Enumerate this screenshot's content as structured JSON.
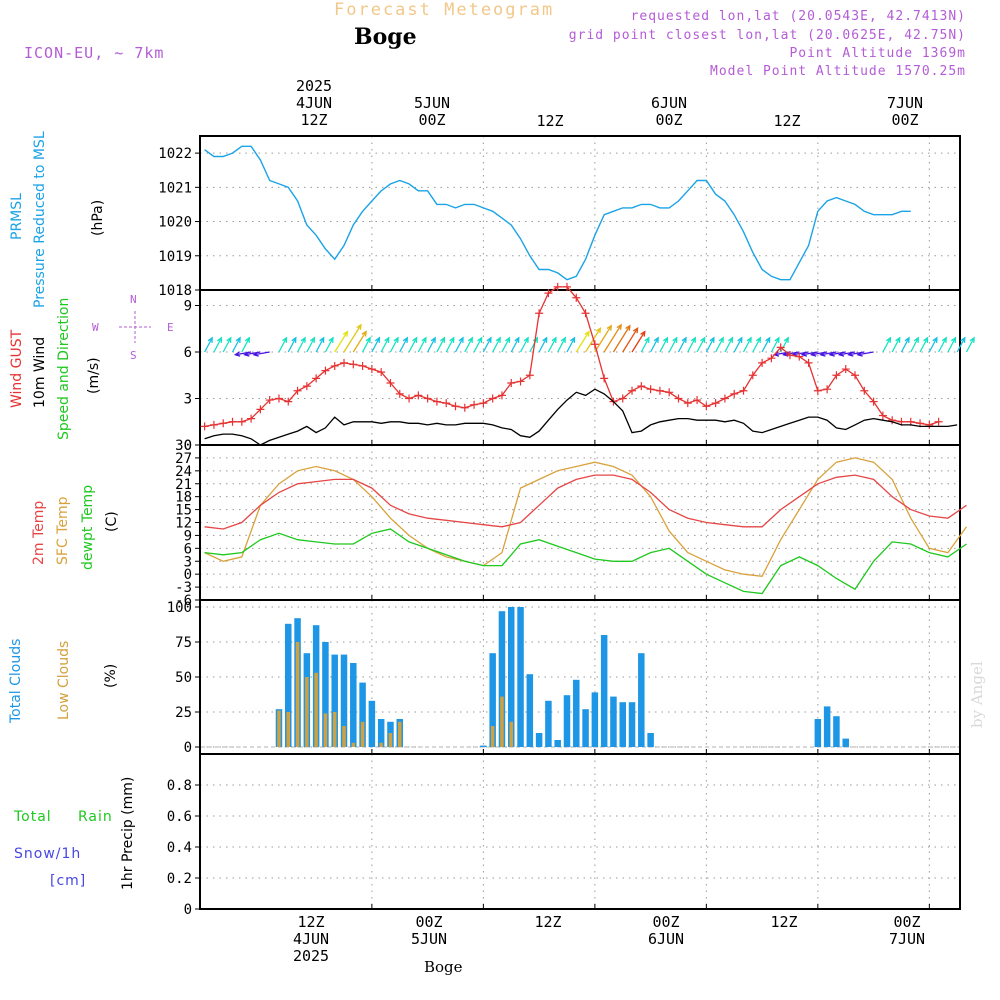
{
  "header": {
    "title": "Forecast Meteogram",
    "location": "Boge",
    "model": "ICON-EU, ~ 7km",
    "requested": "requested lon,lat (20.0543E, 42.7413N)",
    "grid_point": "grid point closest lon,lat (20.0625E, 42.75N)",
    "point_altitude": "Point Altitude 1369m",
    "model_altitude": "Model Point Altitude 1570.25m",
    "footer_location": "Boge",
    "watermark": "by Angel"
  },
  "time_axis": {
    "top_labels": [
      {
        "lines": [
          "2025",
          "4JUN",
          "12Z"
        ],
        "t": 12
      },
      {
        "lines": [
          "5JUN",
          "00Z"
        ],
        "t": 24
      },
      {
        "lines": [
          "12Z"
        ],
        "t": 36
      },
      {
        "lines": [
          "6JUN",
          "00Z"
        ],
        "t": 48
      },
      {
        "lines": [
          "12Z"
        ],
        "t": 60
      },
      {
        "lines": [
          "7JUN",
          "00Z"
        ],
        "t": 72
      }
    ],
    "bottom_labels": [
      {
        "lines": [
          "12Z",
          "4JUN",
          "2025"
        ],
        "t": 12
      },
      {
        "lines": [
          "00Z",
          "5JUN"
        ],
        "t": 24
      },
      {
        "lines": [
          "12Z"
        ],
        "t": 36
      },
      {
        "lines": [
          "00Z",
          "6JUN"
        ],
        "t": 48
      },
      {
        "lines": [
          "12Z"
        ],
        "t": 60
      },
      {
        "lines": [
          "00Z",
          "7JUN"
        ],
        "t": 72
      }
    ]
  },
  "colors": {
    "pressure": "#1aa3e6",
    "gust": "#e63232",
    "wind": "#000000",
    "temp2m": "#e64646",
    "sfc": "#d9a23c",
    "dewpt": "#1ec81e",
    "total_clouds": "#1e96e6",
    "low_clouds": "#d2a03c",
    "rain": "#1ec81e",
    "snow": "#4646e6",
    "annot": "#b45cd6"
  },
  "panel_labels": {
    "pressure": [
      "PRMSL",
      "Pressure Reduced to MSL",
      "(hPa)"
    ],
    "wind": [
      "Wind GUST",
      "10m Wind",
      "Speed and Direction",
      "(m/s)"
    ],
    "temp": [
      "2m Temp",
      "SFC Temp",
      "dewpt Temp",
      "(C)"
    ],
    "clouds": [
      "Total Clouds",
      "Low Clouds",
      "(%)"
    ],
    "precip": [
      "Total",
      "Rain",
      "Snow/1h",
      "[cm]",
      "1hr Precip (mm)"
    ],
    "compass": {
      "n": "N",
      "s": "S",
      "w": "W",
      "e": "E"
    }
  },
  "chart_data": [
    {
      "type": "line",
      "name": "pressure",
      "ylim": [
        1018,
        1022.5
      ],
      "yticks": [
        1018,
        1019,
        1020,
        1021,
        1022
      ],
      "t": [
        -6,
        -5,
        -4,
        -3,
        -2,
        -1,
        0,
        1,
        2,
        3,
        4,
        5,
        6,
        7,
        8,
        9,
        10,
        11,
        12,
        13,
        14,
        15,
        16,
        17,
        18,
        19,
        20,
        21,
        22,
        23,
        24,
        25,
        26,
        27,
        28,
        29,
        30,
        31,
        32,
        33,
        34,
        35,
        36,
        37,
        38,
        39,
        40,
        41,
        42,
        43,
        44,
        45,
        46,
        47,
        48,
        49,
        50,
        51,
        52,
        53,
        54,
        55,
        56,
        57,
        58,
        59,
        60,
        61,
        62,
        63,
        64,
        65,
        66,
        67,
        68,
        69,
        70,
        71,
        72,
        73,
        74,
        75,
        76
      ],
      "series": [
        {
          "values": [
            1022.1,
            1021.9,
            1021.9,
            1022.0,
            1022.2,
            1022.2,
            1021.8,
            1021.2,
            1021.1,
            1021.0,
            1020.6,
            1019.9,
            1019.6,
            1019.2,
            1018.9,
            1019.3,
            1019.9,
            1020.3,
            1020.6,
            1020.9,
            1021.1,
            1021.2,
            1021.1,
            1020.9,
            1020.9,
            1020.5,
            1020.5,
            1020.4,
            1020.5,
            1020.5,
            1020.4,
            1020.3,
            1020.1,
            1019.9,
            1019.5,
            1019.0,
            1018.6,
            1018.6,
            1018.5,
            1018.3,
            1018.4,
            1018.9,
            1019.6,
            1020.2,
            1020.3,
            1020.4,
            1020.4,
            1020.5,
            1020.5,
            1020.4,
            1020.4,
            1020.6,
            1020.9,
            1021.2,
            1021.2,
            1020.8,
            1020.6,
            1020.2,
            1019.7,
            1019.1,
            1018.6,
            1018.4,
            1018.3,
            1018.3,
            1018.8,
            1019.3,
            1020.3,
            1020.6,
            1020.7,
            1020.6,
            1020.5,
            1020.3,
            1020.2,
            1020.2,
            1020.2,
            1020.3,
            1020.3
          ]
        }
      ]
    },
    {
      "type": "line",
      "name": "wind",
      "ylim": [
        0,
        10
      ],
      "yticks": [
        0,
        3,
        6,
        9
      ],
      "t": [
        -6,
        -5,
        -4,
        -3,
        -2,
        -1,
        0,
        1,
        2,
        3,
        4,
        5,
        6,
        7,
        8,
        9,
        10,
        11,
        12,
        13,
        14,
        15,
        16,
        17,
        18,
        19,
        20,
        21,
        22,
        23,
        24,
        25,
        26,
        27,
        28,
        29,
        30,
        31,
        32,
        33,
        34,
        35,
        36,
        37,
        38,
        39,
        40,
        41,
        42,
        43,
        44,
        45,
        46,
        47,
        48,
        49,
        50,
        51,
        52,
        53,
        54,
        55,
        56,
        57,
        58,
        59,
        60,
        61,
        62,
        63,
        64,
        65,
        66,
        67,
        68,
        69,
        70,
        71,
        72,
        73,
        74,
        75,
        76
      ],
      "series": [
        {
          "values": [
            1.2,
            1.3,
            1.4,
            1.5,
            1.5,
            1.7,
            2.3,
            2.9,
            3.0,
            2.8,
            3.5,
            3.8,
            4.3,
            4.8,
            5.1,
            5.3,
            5.2,
            5.1,
            4.9,
            4.7,
            4.0,
            3.3,
            3.0,
            3.2,
            3.0,
            2.8,
            2.7,
            2.5,
            2.4,
            2.6,
            2.7,
            3.0,
            3.2,
            4.0,
            4.1,
            4.5,
            8.5,
            9.8,
            10.2,
            10.2,
            9.5,
            8.5,
            6.5,
            4.3,
            2.8,
            3.0,
            3.5,
            3.8,
            3.6,
            3.5,
            3.4,
            3.0,
            2.7,
            2.9,
            2.5,
            2.7,
            3.0,
            3.3,
            3.5,
            4.5,
            5.3,
            5.6,
            6.3,
            5.8,
            5.7,
            5.3,
            3.5,
            3.6,
            4.5,
            4.9,
            4.5,
            3.5,
            2.8,
            1.9,
            1.6,
            1.5,
            1.5,
            1.4,
            1.3,
            1.5
          ]
        },
        {
          "values": [
            0.4,
            0.6,
            0.7,
            0.7,
            0.6,
            0.4,
            0.0,
            0.3,
            0.5,
            0.7,
            0.9,
            1.2,
            0.8,
            1.1,
            1.8,
            1.3,
            1.5,
            1.5,
            1.5,
            1.4,
            1.5,
            1.5,
            1.4,
            1.4,
            1.3,
            1.4,
            1.3,
            1.3,
            1.4,
            1.4,
            1.4,
            1.3,
            1.1,
            1.0,
            0.6,
            0.5,
            0.9,
            1.6,
            2.3,
            2.9,
            3.4,
            3.2,
            3.6,
            3.3,
            2.8,
            2.2,
            0.8,
            0.9,
            1.3,
            1.5,
            1.6,
            1.7,
            1.7,
            1.6,
            1.6,
            1.6,
            1.5,
            1.6,
            1.4,
            0.9,
            0.8,
            1.0,
            1.2,
            1.4,
            1.6,
            1.8,
            1.8,
            1.6,
            1.1,
            1.0,
            1.3,
            1.6,
            1.7,
            1.6,
            1.5,
            1.3,
            1.3,
            1.2,
            1.2,
            1.2,
            1.2,
            1.3
          ]
        }
      ],
      "arrows": {
        "t_from": -6,
        "t_to": 76,
        "peak_ranges": [
          [
            8,
            10
          ],
          [
            34,
            40
          ]
        ],
        "calm_ranges": [
          [
            -1,
            1
          ],
          [
            57,
            66
          ]
        ]
      }
    },
    {
      "type": "line",
      "name": "temperature",
      "ylim": [
        -6,
        30
      ],
      "yticks": [
        -6,
        -3,
        0,
        3,
        6,
        9,
        12,
        15,
        18,
        21,
        24,
        27,
        30
      ],
      "t": [
        -6,
        -4,
        -2,
        0,
        2,
        4,
        6,
        8,
        10,
        12,
        14,
        16,
        18,
        20,
        22,
        24,
        26,
        28,
        30,
        32,
        34,
        36,
        38,
        40,
        42,
        44,
        46,
        48,
        50,
        52,
        54,
        56,
        58,
        60,
        62,
        64,
        66,
        68,
        70,
        72,
        74,
        76
      ],
      "series": [
        {
          "values": [
            11,
            10.5,
            12,
            16,
            19,
            21,
            21.5,
            22,
            22,
            20,
            16,
            14,
            13,
            12.5,
            12,
            11.5,
            11,
            12,
            16,
            20,
            22,
            23,
            23,
            22,
            19,
            15,
            13,
            12,
            11.5,
            11,
            11,
            15,
            18,
            21,
            22.5,
            23,
            22,
            18,
            15,
            13.5,
            13,
            16
          ]
        },
        {
          "values": [
            5,
            3,
            4,
            16,
            21,
            24,
            25,
            24,
            22,
            18,
            13,
            9,
            6,
            4,
            3,
            2,
            5,
            20,
            22,
            24,
            25,
            26,
            25,
            23,
            18,
            10,
            5,
            3,
            1,
            0,
            -0.5,
            8,
            15,
            22,
            26,
            27,
            26,
            22,
            13,
            6,
            5,
            11
          ]
        },
        {
          "values": [
            5,
            4.5,
            5,
            8,
            9.5,
            8,
            7.5,
            7,
            7,
            9.5,
            10.5,
            7.5,
            6,
            4.5,
            3,
            2,
            2,
            7,
            8,
            6.5,
            5,
            3.5,
            3,
            3,
            5,
            6,
            3,
            0,
            -2,
            -4,
            -4.5,
            2,
            4,
            2,
            -1,
            -3.5,
            3,
            7.5,
            7,
            5,
            4,
            7
          ]
        }
      ]
    },
    {
      "type": "bar",
      "name": "clouds",
      "ylim": [
        -5,
        105
      ],
      "yticks": [
        0,
        25,
        50,
        75,
        100
      ],
      "t_start": 2,
      "t_step": 1,
      "series": [
        {
          "values": [
            27,
            88,
            92,
            67,
            87,
            75,
            66,
            66,
            60,
            46,
            33,
            20,
            18,
            20,
            0,
            0,
            0,
            0,
            0,
            0,
            0,
            0,
            1,
            67,
            97,
            100,
            100,
            52,
            10,
            33,
            5,
            37,
            48,
            27,
            39,
            80,
            36,
            32,
            32,
            67,
            10,
            0,
            0,
            0,
            0,
            0,
            0,
            0,
            0,
            0,
            0,
            0,
            0,
            0,
            0,
            0,
            0,
            0,
            20,
            29,
            22,
            6
          ]
        },
        {
          "values": [
            26,
            25,
            75,
            50,
            53,
            24,
            25,
            15,
            3,
            18,
            0,
            3,
            10,
            18,
            0,
            0,
            0,
            0,
            0,
            0,
            0,
            0,
            0,
            15,
            36,
            18,
            0,
            0,
            0,
            0,
            0,
            0,
            0,
            0,
            0,
            0,
            0,
            0,
            0,
            0,
            0,
            0,
            0,
            0,
            0,
            0,
            0,
            0,
            0,
            0,
            0,
            0,
            0,
            0,
            0,
            0,
            0,
            0,
            0,
            0,
            0,
            0
          ]
        }
      ]
    },
    {
      "type": "line",
      "name": "precipitation",
      "ylim": [
        0,
        1
      ],
      "yticks": [
        0,
        0.2,
        0.4,
        0.6,
        0.8
      ],
      "series": []
    }
  ]
}
